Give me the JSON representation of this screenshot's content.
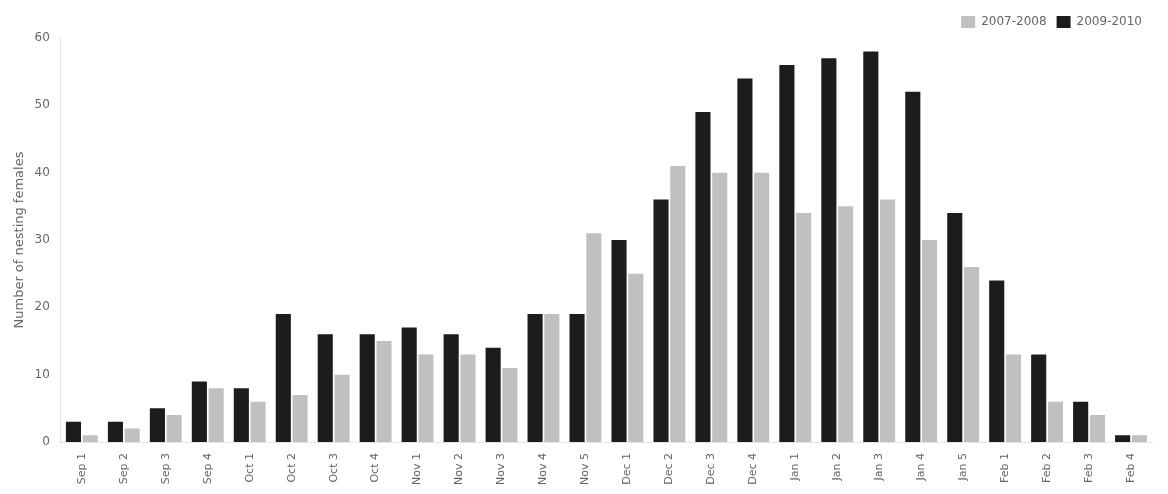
{
  "chart_data": {
    "type": "bar",
    "categories": [
      "Sep 1",
      "Sep 2",
      "Sep 3",
      "Sep 4",
      "Oct 1",
      "Oct 2",
      "Oct 3",
      "Oct 4",
      "Nov 1",
      "Nov 2",
      "Nov 3",
      "Nov 4",
      "Nov 5",
      "Dec 1",
      "Dec 2",
      "Dec 3",
      "Dec 4",
      "Jan 1",
      "Jan 2",
      "Jan 3",
      "Jan 4",
      "Jan 5",
      "Feb 1",
      "Feb 2",
      "Feb 3",
      "Feb 4"
    ],
    "series": [
      {
        "name": "2009-2010",
        "color": "#1c1c1c",
        "values": [
          3,
          3,
          5,
          9,
          8,
          19,
          16,
          16,
          17,
          16,
          14,
          19,
          19,
          30,
          36,
          49,
          54,
          56,
          57,
          58,
          52,
          34,
          24,
          13,
          6,
          1
        ]
      },
      {
        "name": "2007-2008",
        "color": "#c0c0c0",
        "values": [
          1,
          2,
          4,
          8,
          6,
          7,
          10,
          15,
          13,
          13,
          11,
          19,
          31,
          25,
          41,
          40,
          40,
          34,
          35,
          36,
          30,
          26,
          13,
          6,
          4,
          1
        ]
      }
    ],
    "ylabel": "Number of nesting females",
    "ylim": [
      0,
      60
    ],
    "yticks": [
      0,
      10,
      20,
      30,
      40,
      50,
      60
    ],
    "grid": false,
    "legend": "upper right"
  }
}
